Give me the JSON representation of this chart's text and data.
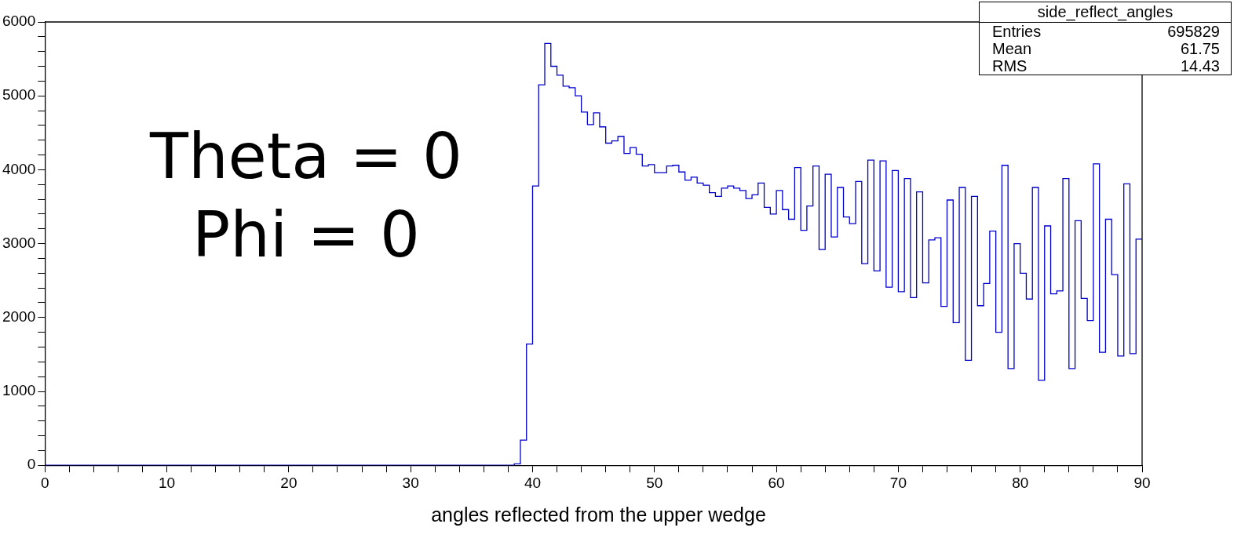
{
  "chart_data": {
    "type": "histogram",
    "xlabel": "angles reflected from the upper wedge",
    "bins": [
      0,
      0.5,
      1,
      1.5,
      2,
      2.5,
      3,
      3.5,
      4,
      4.5,
      5,
      5.5,
      6,
      6.5,
      7,
      7.5,
      8,
      8.5,
      9,
      9.5,
      10,
      10.5,
      11,
      11.5,
      12,
      12.5,
      13,
      13.5,
      14,
      14.5,
      15,
      15.5,
      16,
      16.5,
      17,
      17.5,
      18,
      18.5,
      19,
      19.5,
      20,
      20.5,
      21,
      21.5,
      22,
      22.5,
      23,
      23.5,
      24,
      24.5,
      25,
      25.5,
      26,
      26.5,
      27,
      27.5,
      28,
      28.5,
      29,
      29.5,
      30,
      30.5,
      31,
      31.5,
      32,
      32.5,
      33,
      33.5,
      34,
      34.5,
      35,
      35.5,
      36,
      36.5,
      37,
      37.5,
      38,
      38.5,
      39,
      39.5,
      40,
      40.5,
      41,
      41.5,
      42,
      42.5,
      43,
      43.5,
      44,
      44.5,
      45,
      45.5,
      46,
      46.5,
      47,
      47.5,
      48,
      48.5,
      49,
      49.5,
      50,
      50.5,
      51,
      51.5,
      52,
      52.5,
      53,
      53.5,
      54,
      54.5,
      55,
      55.5,
      56,
      56.5,
      57,
      57.5,
      58,
      58.5,
      59,
      59.5,
      60,
      60.5,
      61,
      61.5,
      62,
      62.5,
      63,
      63.5,
      64,
      64.5,
      65,
      65.5,
      66,
      66.5,
      67,
      67.5,
      68,
      68.5,
      69,
      69.5,
      70,
      70.5,
      71,
      71.5,
      72,
      72.5,
      73,
      73.5,
      74,
      74.5,
      75,
      75.5,
      76,
      76.5,
      77,
      77.5,
      78,
      78.5,
      79,
      79.5,
      80,
      80.5,
      81,
      81.5,
      82,
      82.5,
      83,
      83.5,
      84,
      84.5,
      85,
      85.5,
      86,
      86.5,
      87,
      87.5,
      88,
      88.5,
      89,
      89.5,
      90
    ],
    "values": [
      0,
      0,
      0,
      0,
      0,
      0,
      0,
      0,
      0,
      0,
      0,
      0,
      0,
      0,
      0,
      0,
      0,
      0,
      0,
      0,
      0,
      0,
      0,
      0,
      0,
      0,
      0,
      0,
      0,
      0,
      0,
      0,
      0,
      0,
      0,
      0,
      0,
      0,
      0,
      0,
      0,
      0,
      0,
      0,
      0,
      0,
      0,
      0,
      0,
      0,
      0,
      0,
      0,
      0,
      0,
      0,
      0,
      0,
      0,
      0,
      0,
      0,
      0,
      0,
      0,
      0,
      0,
      0,
      0,
      0,
      0,
      0,
      0,
      0,
      0,
      0,
      0,
      20,
      340,
      1640,
      3780,
      5150,
      5710,
      5400,
      5280,
      5130,
      5110,
      5000,
      4780,
      4610,
      4770,
      4580,
      4360,
      4390,
      4450,
      4220,
      4300,
      4210,
      4050,
      4070,
      3960,
      3960,
      4050,
      4060,
      3970,
      3860,
      3900,
      3820,
      3790,
      3690,
      3640,
      3750,
      3780,
      3750,
      3720,
      3610,
      3660,
      3820,
      3490,
      3400,
      3720,
      3460,
      3330,
      4030,
      3180,
      3510,
      4050,
      2920,
      3940,
      3090,
      3760,
      3360,
      3270,
      3840,
      2730,
      4130,
      2630,
      4120,
      2410,
      3990,
      2350,
      3880,
      2270,
      3700,
      2470,
      3050,
      3080,
      2150,
      3590,
      1930,
      3760,
      1420,
      3640,
      2160,
      2460,
      3170,
      1800,
      4060,
      1310,
      3000,
      2600,
      2250,
      3760,
      1150,
      3240,
      2320,
      2360,
      3880,
      1310,
      3310,
      2260,
      1960,
      4080,
      1530,
      3330,
      2580,
      1480,
      3810,
      1510,
      3060
    ],
    "color": "#0000cc",
    "xlim": [
      0,
      90
    ],
    "xticks": [
      0,
      {
        "value": 2,
        "label": null
      },
      {
        "value": 4,
        "label": null
      },
      {
        "value": 6,
        "label": null
      },
      {
        "value": 8,
        "label": null
      },
      10,
      {
        "value": 12,
        "label": null
      },
      {
        "value": 14,
        "label": null
      },
      {
        "value": 16,
        "label": null
      },
      {
        "value": 18,
        "label": null
      },
      20,
      {
        "value": 22,
        "label": null
      },
      {
        "value": 24,
        "label": null
      },
      {
        "value": 26,
        "label": null
      },
      {
        "value": 28,
        "label": null
      },
      30,
      {
        "value": 32,
        "label": null
      },
      {
        "value": 34,
        "label": null
      },
      {
        "value": 36,
        "label": null
      },
      {
        "value": 38,
        "label": null
      },
      40,
      {
        "value": 42,
        "label": null
      },
      {
        "value": 44,
        "label": null
      },
      {
        "value": 46,
        "label": null
      },
      {
        "value": 48,
        "label": null
      },
      50,
      {
        "value": 52,
        "label": null
      },
      {
        "value": 54,
        "label": null
      },
      {
        "value": 56,
        "label": null
      },
      {
        "value": 58,
        "label": null
      },
      60,
      {
        "value": 62,
        "label": null
      },
      {
        "value": 64,
        "label": null
      },
      {
        "value": 66,
        "label": null
      },
      {
        "value": 68,
        "label": null
      },
      70,
      {
        "value": 72,
        "label": null
      },
      {
        "value": 74,
        "label": null
      },
      {
        "value": 76,
        "label": null
      },
      {
        "value": 78,
        "label": null
      },
      80,
      {
        "value": 82,
        "label": null
      },
      {
        "value": 84,
        "label": null
      },
      {
        "value": 86,
        "label": null
      },
      {
        "value": 88,
        "label": null
      },
      90
    ],
    "ylim": [
      0,
      6000
    ],
    "yticks": [
      0,
      {
        "value": 200,
        "label": null
      },
      {
        "value": 400,
        "label": null
      },
      {
        "value": 600,
        "label": null
      },
      {
        "value": 800,
        "label": null
      },
      1000,
      {
        "value": 1200,
        "label": null
      },
      {
        "value": 1400,
        "label": null
      },
      {
        "value": 1600,
        "label": null
      },
      {
        "value": 1800,
        "label": null
      },
      2000,
      {
        "value": 2200,
        "label": null
      },
      {
        "value": 2400,
        "label": null
      },
      {
        "value": 2600,
        "label": null
      },
      {
        "value": 2800,
        "label": null
      },
      3000,
      {
        "value": 3200,
        "label": null
      },
      {
        "value": 3400,
        "label": null
      },
      {
        "value": 3600,
        "label": null
      },
      {
        "value": 3800,
        "label": null
      },
      4000,
      {
        "value": 4200,
        "label": null
      },
      {
        "value": 4400,
        "label": null
      },
      {
        "value": 4600,
        "label": null
      },
      {
        "value": 4800,
        "label": null
      },
      5000,
      {
        "value": 5200,
        "label": null
      },
      {
        "value": 5400,
        "label": null
      },
      {
        "value": 5600,
        "label": null
      },
      {
        "value": 5800,
        "label": null
      },
      6000
    ],
    "grid": false,
    "legend": false,
    "annotations": [
      "Theta = 0",
      "Phi = 0",
      "side_reflect_angles",
      "Entries",
      "695829",
      "Mean",
      "61.75",
      "RMS",
      "14.43"
    ]
  }
}
